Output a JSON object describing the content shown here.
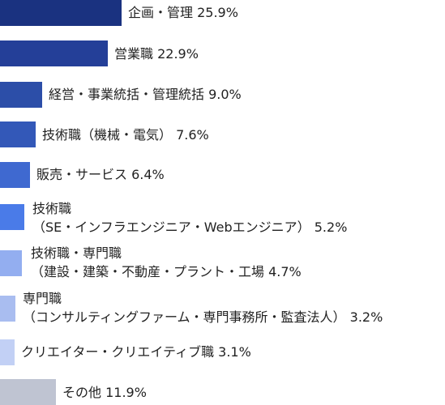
{
  "chart_data": {
    "type": "bar",
    "orientation": "horizontal",
    "unit": "%",
    "xlim": [
      0,
      25.9
    ],
    "grid": false,
    "legend": "none",
    "categories": [
      [
        "企画・管理 25.9%"
      ],
      [
        "営業職 22.9%"
      ],
      [
        "経営・事業統括・管理統括 9.0%"
      ],
      [
        "技術職（機械・電気） 7.6%"
      ],
      [
        "販売・サービス 6.4%"
      ],
      [
        "技術職",
        "（SE・インフラエンジニア・Webエンジニア） 5.2%"
      ],
      [
        "技術職・専門職",
        "（建設・建築・不動産・プラント・工場 4.7%"
      ],
      [
        "専門職",
        "（コンサルティングファーム・専門事務所・監査法人） 3.2%"
      ],
      [
        "クリエイター・クリエイティブ職 3.1%"
      ],
      [
        "その他 11.9%"
      ]
    ],
    "values": [
      25.9,
      22.9,
      9.0,
      7.6,
      6.4,
      5.2,
      4.7,
      3.2,
      3.1,
      11.9
    ],
    "colors": [
      "#1a3280",
      "#243f98",
      "#2c4ea8",
      "#3358b8",
      "#3f69d0",
      "#4a7be8",
      "#93aef0",
      "#a9bdf0",
      "#c2d0f5",
      "#bfc4d2"
    ]
  }
}
